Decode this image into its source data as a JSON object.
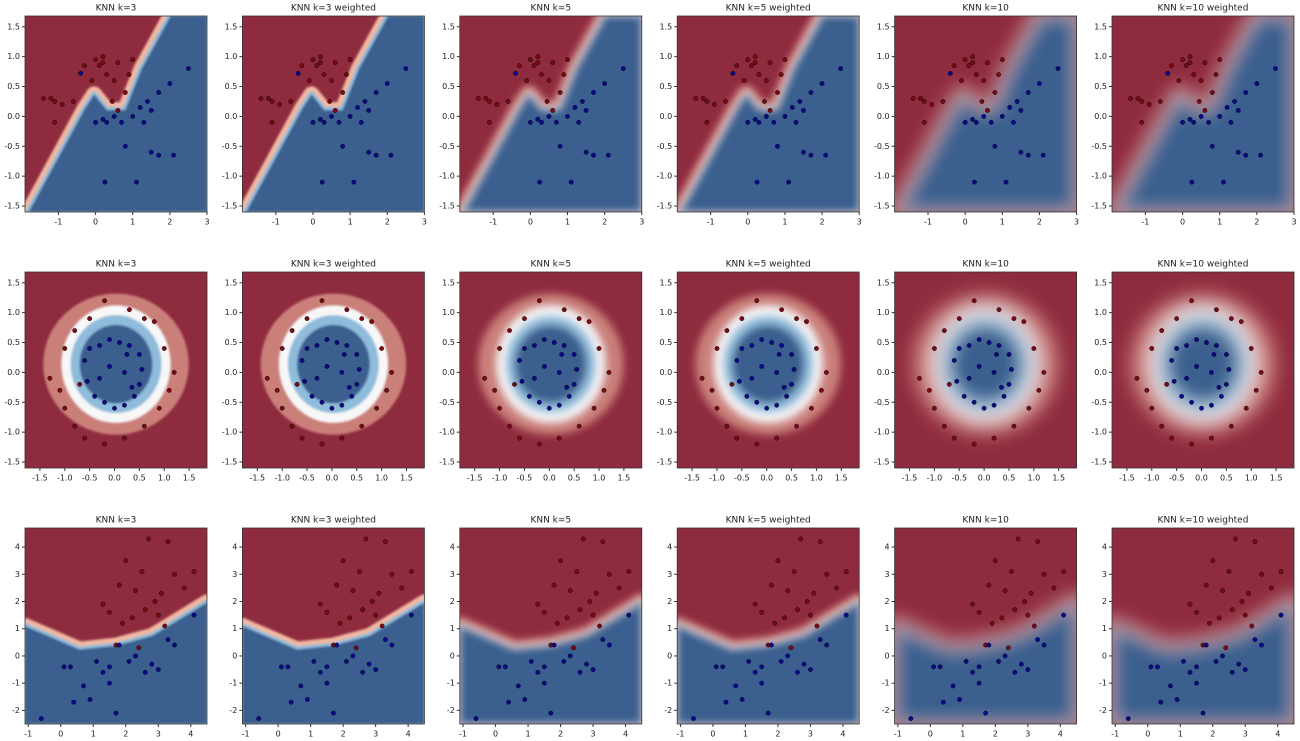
{
  "chart_data": [
    {
      "type": "scatter",
      "titles": [
        "KNN k=3",
        "KNN k=3 weighted",
        "KNN k=5",
        "KNN k=5 weighted",
        "KNN k=10",
        "KNN k=10 weighted"
      ],
      "xlim": [
        -1.9,
        3.0
      ],
      "ylim": [
        -1.6,
        1.68
      ],
      "xticks": [
        -1,
        0,
        1,
        2,
        3
      ],
      "yticks": [
        -1.5,
        {
          "value": -1.0,
          "label": "-1.0"
        },
        -0.5,
        {
          "value": 0,
          "label": "0.0"
        },
        0.5,
        {
          "value": 1.0,
          "label": "1.0"
        },
        1.5
      ],
      "series": [
        {
          "color": "#7a0a14",
          "x": [
            -1.4,
            -1.2,
            -1.1,
            -0.9,
            -1.1,
            -0.6,
            -0.3,
            0,
            0.1,
            0.2,
            -0.1,
            0.3,
            0.5,
            0.45,
            0.6,
            1,
            0.9,
            0.8,
            0.6,
            0.2
          ],
          "y": [
            0.3,
            0.3,
            0.25,
            0.2,
            -0.1,
            0.25,
            0.85,
            0.95,
            0.85,
            0.9,
            0.6,
            0.7,
            0.6,
            0.25,
            0.9,
            0.95,
            0.7,
            0.4,
            0.1,
            1.0
          ]
        },
        {
          "color": "#0a0a8a",
          "x": [
            -0.4,
            0,
            0.2,
            0.3,
            0.5,
            0.7,
            1,
            1.2,
            1.4,
            1.7,
            2,
            2.5,
            0.8,
            1.5,
            1.7,
            2.1,
            0.25,
            1.1,
            1.3,
            1.5
          ],
          "y": [
            0.72,
            -0.1,
            -0.05,
            -0.1,
            0,
            -0.1,
            0,
            0.15,
            0.25,
            0.4,
            0.55,
            0.8,
            -0.5,
            -0.6,
            -0.65,
            -0.65,
            -1.1,
            -1.1,
            -0.1,
            0.1
          ]
        }
      ]
    },
    {
      "type": "scatter",
      "titles": [
        "KNN k=3",
        "KNN k=3 weighted",
        "KNN k=5",
        "KNN k=5 weighted",
        "KNN k=10",
        "KNN k=10 weighted"
      ],
      "xlim": [
        -1.8,
        1.86
      ],
      "ylim": [
        -1.6,
        1.68
      ],
      "xticks": [
        -1.5,
        {
          "value": -1.0,
          "label": "-1.0"
        },
        -0.5,
        {
          "value": 0,
          "label": "0.0"
        },
        0.5,
        {
          "value": 1.0,
          "label": "1.0"
        },
        1.5
      ],
      "yticks": [
        -1.5,
        {
          "value": -1.0,
          "label": "-1.0"
        },
        -0.5,
        {
          "value": 0,
          "label": "0.0"
        },
        0.5,
        {
          "value": 1.0,
          "label": "1.0"
        },
        1.5
      ],
      "series": [
        {
          "color": "#7a0a14",
          "x": [
            -1.3,
            -1.1,
            -1,
            -0.8,
            -0.6,
            -0.2,
            0.2,
            0.6,
            0.9,
            1.1,
            1.2,
            1.0,
            0.8,
            0.6,
            0.3,
            -0.2,
            -0.5,
            -0.8,
            -1.0,
            -0.7
          ],
          "y": [
            -0.1,
            -0.3,
            -0.6,
            -0.9,
            -1.1,
            -1.2,
            -1.1,
            -0.9,
            -0.6,
            -0.3,
            0,
            0.4,
            0.85,
            0.9,
            1.05,
            1.2,
            0.9,
            0.7,
            0.4,
            -0.2
          ]
        },
        {
          "color": "#0a0a8a",
          "x": [
            -0.6,
            -0.5,
            -0.3,
            -0.1,
            0.1,
            0.3,
            0.5,
            0.55,
            0.5,
            0.4,
            0.2,
            0,
            -0.2,
            -0.4,
            -0.55,
            -0.1,
            0.2,
            -0.3,
            0.25,
            0.35
          ],
          "y": [
            0.2,
            0.4,
            0.45,
            0.55,
            0.5,
            0.45,
            0.3,
            0.05,
            -0.2,
            -0.4,
            -0.55,
            -0.6,
            -0.5,
            -0.4,
            -0.15,
            0.1,
            0,
            -0.1,
            0.3,
            -0.25
          ]
        }
      ]
    },
    {
      "type": "scatter",
      "titles": [
        "KNN k=3",
        "KNN k=3 weighted",
        "KNN k=5",
        "KNN k=5 weighted",
        "KNN k=10",
        "KNN k=10 weighted"
      ],
      "xlim": [
        -1.1,
        4.5
      ],
      "ylim": [
        -2.5,
        4.7
      ],
      "xticks": [
        -1,
        0,
        1,
        2,
        3,
        4
      ],
      "yticks": [
        -2,
        -1,
        0,
        1,
        2,
        3,
        4
      ],
      "series": [
        {
          "color": "#7a0a14",
          "x": [
            1.3,
            1.5,
            1.8,
            2,
            2.3,
            2.5,
            2.7,
            2.9,
            3.1,
            3.3,
            3.5,
            3.8,
            4.1,
            2.2,
            2.6,
            1.9,
            3.0,
            2.4,
            3.2,
            1.7
          ],
          "y": [
            1.9,
            1.6,
            2.6,
            3.5,
            2.4,
            3.1,
            4.3,
            2.0,
            2.3,
            4.2,
            3.0,
            2.5,
            3.1,
            1.4,
            1.7,
            1.2,
            1.5,
            0.3,
            1.1,
            0.4
          ]
        },
        {
          "color": "#0a0a8a",
          "x": [
            -0.6,
            0.1,
            0.3,
            0.4,
            0.7,
            0.9,
            1.1,
            1.3,
            1.5,
            1.7,
            1.8,
            2.1,
            2.3,
            2.6,
            2.8,
            3.0,
            3.3,
            3.5,
            4.1,
            1.5
          ],
          "y": [
            -2.3,
            -0.4,
            -0.4,
            -1.7,
            -1.1,
            -1.6,
            -0.2,
            -0.6,
            -0.4,
            -2.1,
            0.4,
            -0.2,
            0,
            -0.6,
            -0.3,
            -0.5,
            0.6,
            0.4,
            1.5,
            -1.0
          ]
        }
      ]
    }
  ]
}
